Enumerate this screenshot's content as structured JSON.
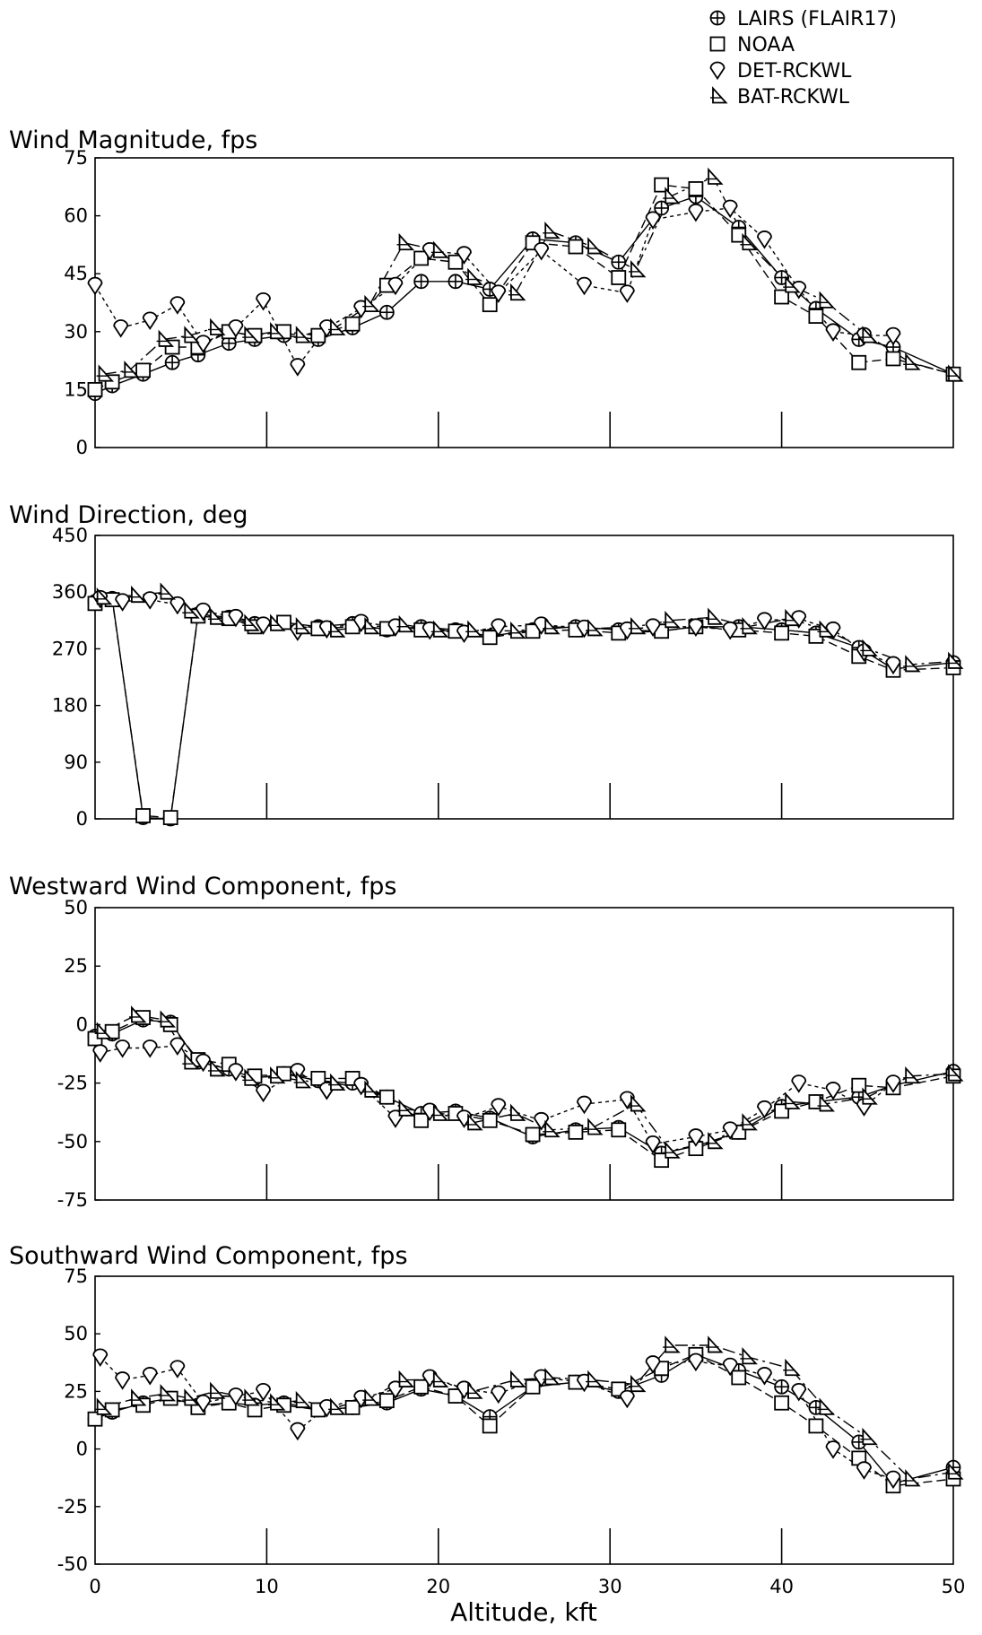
{
  "chart_data": [
    {
      "type": "line",
      "title": "Wind Magnitude, fps",
      "xlabel": "Altitude, kft",
      "xlim": [
        0,
        50
      ],
      "ylim": [
        0,
        75
      ],
      "xticks": [
        0,
        10,
        20,
        30,
        40,
        50
      ],
      "yticks": [
        0,
        15,
        30,
        45,
        60,
        75
      ],
      "series": [
        {
          "name": "LAIRS (FLAIR17)",
          "marker": "circle-plus",
          "x": [
            0,
            1,
            2.8,
            4.5,
            6,
            7.8,
            9.3,
            11,
            13,
            15,
            17,
            19,
            21,
            23,
            25.5,
            28,
            30.5,
            33,
            35,
            37.5,
            40,
            42,
            44.5,
            46.5,
            50
          ],
          "y": [
            14,
            16,
            19,
            22,
            24,
            27,
            28,
            29,
            28,
            31,
            35,
            43,
            43,
            41,
            54,
            53,
            48,
            62,
            65,
            57,
            44,
            36,
            28,
            26,
            19
          ]
        },
        {
          "name": "NOAA",
          "marker": "square",
          "x": [
            0,
            1,
            2.8,
            4.5,
            6,
            7.8,
            9.3,
            11,
            13,
            15,
            17,
            19,
            21,
            23,
            25.5,
            28,
            30.5,
            33,
            35,
            37.5,
            40,
            42,
            44.5,
            46.5,
            50
          ],
          "y": [
            15,
            17,
            20,
            26,
            26,
            30,
            29,
            30,
            29,
            32,
            42,
            49,
            48,
            37,
            53,
            52,
            44,
            68,
            67,
            55,
            39,
            34,
            22,
            23,
            19
          ]
        },
        {
          "name": "DET-RCKWL",
          "marker": "diamond",
          "x": [
            0,
            1.5,
            3.2,
            4.8,
            6.3,
            8.2,
            9.8,
            11.8,
            13.5,
            15.5,
            17.5,
            19.5,
            21.5,
            23.5,
            26,
            28.5,
            31,
            32.5,
            35,
            37,
            39,
            41,
            43,
            44.8,
            46.5
          ],
          "y": [
            42,
            31,
            33,
            37,
            27,
            31,
            38,
            21,
            31,
            36,
            42,
            51,
            50,
            40,
            51,
            42,
            40,
            59,
            61,
            62,
            54,
            41,
            30,
            29,
            29
          ]
        },
        {
          "name": "BAT-RCKWL",
          "marker": "triangle",
          "x": [
            0.5,
            2,
            4,
            5.5,
            7,
            9,
            10.5,
            12,
            14,
            16,
            18,
            20,
            22,
            24.5,
            26.5,
            29,
            31.5,
            33.5,
            36,
            38,
            40.5,
            42.5,
            45,
            47.5,
            50
          ],
          "y": [
            19,
            20,
            28,
            29,
            31,
            29,
            30,
            29,
            31,
            37,
            53,
            51,
            44,
            40,
            56,
            52,
            46,
            65,
            70,
            53,
            42,
            38,
            29,
            22,
            19
          ]
        }
      ]
    },
    {
      "type": "line",
      "title": "Wind Direction, deg",
      "xlabel": "Altitude, kft",
      "xlim": [
        0,
        50
      ],
      "ylim": [
        0,
        450
      ],
      "xticks": [
        0,
        10,
        20,
        30,
        40,
        50
      ],
      "yticks": [
        0,
        90,
        180,
        270,
        360,
        450
      ],
      "series": [
        {
          "name": "LAIRS (FLAIR17)",
          "marker": "circle-plus",
          "x": [
            0,
            1,
            2.8,
            4.4,
            6,
            7.8,
            9.3,
            11,
            13,
            15,
            17,
            19,
            21,
            23,
            25.5,
            28,
            30.5,
            33,
            35,
            37.5,
            40,
            42,
            44.5,
            46.5,
            50
          ],
          "y": [
            345,
            350,
            2,
            0,
            325,
            320,
            310,
            312,
            305,
            310,
            300,
            305,
            300,
            290,
            300,
            305,
            300,
            298,
            305,
            305,
            300,
            295,
            272,
            238,
            248
          ]
        },
        {
          "name": "NOAA",
          "marker": "square",
          "x": [
            0,
            1,
            2.8,
            4.4,
            6,
            7.8,
            9.3,
            11,
            13,
            15,
            17,
            19,
            21,
            23,
            25.5,
            28,
            30.5,
            33,
            35,
            37.5,
            40,
            42,
            44.5,
            46.5,
            50
          ],
          "y": [
            342,
            348,
            5,
            2,
            322,
            318,
            305,
            312,
            302,
            305,
            302,
            300,
            298,
            288,
            298,
            300,
            295,
            298,
            305,
            300,
            295,
            290,
            258,
            236,
            240
          ]
        },
        {
          "name": "DET-RCKWL",
          "marker": "diamond",
          "x": [
            0.3,
            1.6,
            3.2,
            4.8,
            6.3,
            8.2,
            9.8,
            11.8,
            13.5,
            15.5,
            17.5,
            19.5,
            21.5,
            23.5,
            26,
            28.5,
            31,
            32.5,
            35,
            37,
            39,
            41,
            43,
            44.8,
            46.5
          ],
          "y": [
            350,
            345,
            348,
            340,
            330,
            320,
            308,
            298,
            302,
            312,
            305,
            300,
            295,
            305,
            308,
            303,
            300,
            305,
            305,
            300,
            315,
            318,
            300,
            265,
            245
          ]
        },
        {
          "name": "BAT-RCKWL",
          "marker": "triangle",
          "x": [
            0.4,
            2.4,
            4.1,
            5.5,
            7,
            9,
            10.5,
            12,
            14,
            16,
            18,
            20,
            22,
            24.5,
            26.5,
            29,
            31.5,
            33.5,
            36,
            38,
            40.5,
            42.5,
            45,
            47.5,
            50
          ],
          "y": [
            352,
            355,
            360,
            330,
            320,
            310,
            310,
            305,
            300,
            305,
            308,
            300,
            300,
            298,
            305,
            302,
            305,
            315,
            320,
            305,
            318,
            300,
            270,
            245,
            250
          ]
        }
      ]
    },
    {
      "type": "line",
      "title": "Westward Wind Component, fps",
      "xlabel": "Altitude, kft",
      "xlim": [
        0,
        50
      ],
      "ylim": [
        -75,
        50
      ],
      "xticks": [
        0,
        10,
        20,
        30,
        40,
        50
      ],
      "yticks": [
        -75,
        -50,
        -25,
        0,
        25,
        50
      ],
      "series": [
        {
          "name": "LAIRS (FLAIR17)",
          "marker": "circle-plus",
          "x": [
            0,
            1,
            2.8,
            4.4,
            6,
            7.8,
            9.3,
            11,
            13,
            15,
            17,
            19,
            21,
            23,
            25.5,
            28,
            30.5,
            33,
            35,
            37.5,
            40,
            42,
            44.5,
            46.5,
            50
          ],
          "y": [
            -5,
            -4,
            2,
            1,
            -16,
            -19,
            -23,
            -21,
            -24,
            -25,
            -31,
            -38,
            -37,
            -40,
            -48,
            -45,
            -44,
            -55,
            -52,
            -46,
            -35,
            -33,
            -31,
            -26,
            -20
          ]
        },
        {
          "name": "NOAA",
          "marker": "square",
          "x": [
            0,
            1,
            2.8,
            4.4,
            6,
            7.8,
            9.3,
            11,
            13,
            15,
            17,
            19,
            21,
            23,
            25.5,
            28,
            30.5,
            33,
            35,
            37.5,
            40,
            42,
            44.5,
            46.5,
            50
          ],
          "y": [
            -6,
            -3,
            3,
            0,
            -15,
            -17,
            -22,
            -21,
            -23,
            -23,
            -31,
            -41,
            -38,
            -41,
            -47,
            -46,
            -45,
            -58,
            -53,
            -46,
            -37,
            -33,
            -26,
            -27,
            -22
          ]
        },
        {
          "name": "DET-RCKWL",
          "marker": "diamond",
          "x": [
            0.3,
            1.6,
            3.2,
            4.8,
            6.3,
            8.2,
            9.8,
            11.8,
            13.5,
            15.5,
            17.5,
            19.5,
            21.5,
            23.5,
            26,
            28.5,
            31,
            32.5,
            35,
            37,
            39,
            41,
            43,
            44.8,
            46.5
          ],
          "y": [
            -12,
            -10,
            -10,
            -9,
            -16,
            -20,
            -29,
            -20,
            -28,
            -26,
            -40,
            -37,
            -40,
            -35,
            -41,
            -34,
            -32,
            -51,
            -48,
            -45,
            -36,
            -25,
            -28,
            -35,
            -25
          ]
        },
        {
          "name": "BAT-RCKWL",
          "marker": "triangle",
          "x": [
            0.4,
            2.4,
            4.1,
            5.5,
            7,
            9,
            10.5,
            12,
            14,
            16,
            18,
            20,
            22,
            24.5,
            26.5,
            29,
            31.5,
            33.5,
            36,
            38,
            40.5,
            42.5,
            45,
            47.5,
            50
          ],
          "y": [
            -3,
            4,
            2,
            -16,
            -19,
            -23,
            -22,
            -24,
            -25,
            -28,
            -36,
            -38,
            -42,
            -38,
            -45,
            -44,
            -34,
            -54,
            -50,
            -42,
            -33,
            -34,
            -31,
            -22,
            -21
          ]
        }
      ]
    },
    {
      "type": "line",
      "title": "Southward Wind Component, fps",
      "xlabel": "Altitude, kft",
      "xlim": [
        0,
        50
      ],
      "ylim": [
        -50,
        75
      ],
      "xticks": [
        0,
        10,
        20,
        30,
        40,
        50
      ],
      "yticks": [
        -50,
        -25,
        0,
        25,
        50,
        75
      ],
      "series": [
        {
          "name": "LAIRS (FLAIR17)",
          "marker": "circle-plus",
          "x": [
            0,
            1,
            2.8,
            4.4,
            6,
            7.8,
            9.3,
            11,
            13,
            15,
            17,
            19,
            21,
            23,
            25.5,
            28,
            30.5,
            33,
            35,
            37.5,
            40,
            42,
            44.5,
            46.5,
            50
          ],
          "y": [
            13,
            16,
            20,
            22,
            19,
            20,
            19,
            20,
            17,
            18,
            20,
            26,
            23,
            14,
            27,
            29,
            25,
            32,
            41,
            34,
            27,
            18,
            3,
            -15,
            -8
          ]
        },
        {
          "name": "NOAA",
          "marker": "square",
          "x": [
            0,
            1,
            2.8,
            4.4,
            6,
            7.8,
            9.3,
            11,
            13,
            15,
            17,
            19,
            21,
            23,
            25.5,
            28,
            30.5,
            33,
            35,
            37.5,
            40,
            42,
            44.5,
            46.5,
            50
          ],
          "y": [
            13,
            17,
            19,
            22,
            18,
            20,
            17,
            19,
            17,
            18,
            21,
            27,
            23,
            10,
            27,
            29,
            26,
            35,
            41,
            31,
            20,
            10,
            -4,
            -16,
            -13
          ]
        },
        {
          "name": "DET-RCKWL",
          "marker": "diamond",
          "x": [
            0.3,
            1.6,
            3.2,
            4.8,
            6.3,
            8.2,
            9.8,
            11.8,
            13.5,
            15.5,
            17.5,
            19.5,
            21.5,
            23.5,
            26,
            28.5,
            31,
            32.5,
            35,
            37,
            39,
            41,
            43,
            44.8,
            46.5
          ],
          "y": [
            40,
            30,
            32,
            35,
            20,
            23,
            25,
            8,
            18,
            22,
            26,
            31,
            26,
            24,
            31,
            29,
            22,
            37,
            38,
            36,
            32,
            25,
            0,
            -9,
            -13
          ]
        },
        {
          "name": "BAT-RCKWL",
          "marker": "triangle",
          "x": [
            0.4,
            2.4,
            4.1,
            5.5,
            7,
            9,
            10.5,
            12,
            14,
            16,
            18,
            20,
            22,
            24.5,
            26.5,
            29,
            31.5,
            33.5,
            36,
            38,
            40.5,
            42.5,
            45,
            47.5,
            50
          ],
          "y": [
            18,
            22,
            24,
            22,
            25,
            22,
            20,
            21,
            18,
            22,
            30,
            30,
            25,
            30,
            31,
            30,
            28,
            45,
            45,
            40,
            35,
            18,
            5,
            -13,
            -10
          ]
        }
      ]
    }
  ],
  "legend": [
    {
      "label": "LAIRS (FLAIR17)",
      "icon": "circle-plus-icon"
    },
    {
      "label": "NOAA",
      "icon": "square-icon"
    },
    {
      "label": "DET-RCKWL",
      "icon": "diamond-icon"
    },
    {
      "label": "BAT-RCKWL",
      "icon": "triangle-icon"
    }
  ],
  "xlabel": "Altitude, kft"
}
